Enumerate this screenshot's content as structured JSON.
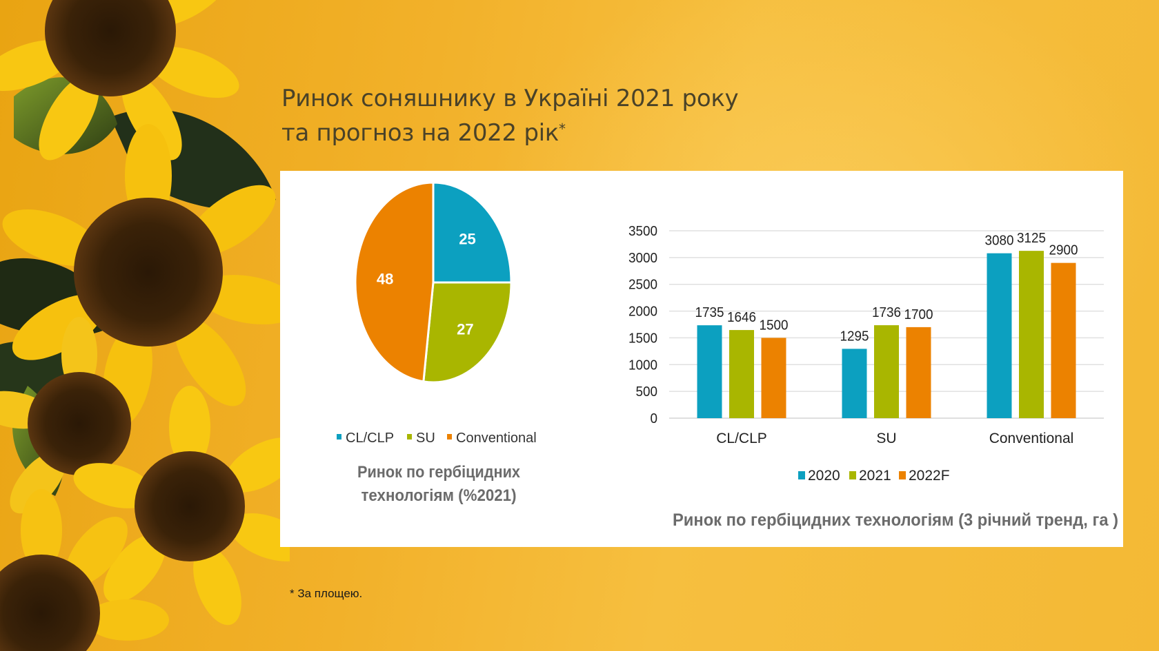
{
  "slide": {
    "title_line1": "Ринок соняшнику в Україні 2021 року",
    "title_line2": "та прогноз на 2022 рік",
    "title_mark": "*",
    "footnote": "* За площею."
  },
  "colors": {
    "blue": "#0ca0c0",
    "green": "#a9b600",
    "orange": "#ec8200",
    "text_dark": "#222222",
    "text_grey": "#6b6b6b",
    "grid": "#e0e0e0"
  },
  "chart_data": [
    {
      "type": "pie",
      "title": "Ринок по гербіцидних технологіям (%2021)",
      "title_lines": [
        "Ринок по гербіцидних",
        "технологіям  (%2021)"
      ],
      "categories": [
        "CL/CLP",
        "SU",
        "Conventional"
      ],
      "values": [
        25,
        27,
        48
      ],
      "data_labels": [
        "25",
        "27",
        "48"
      ],
      "legend": [
        "CL/CLP",
        "SU",
        "Conventional"
      ],
      "legend_position": "bottom"
    },
    {
      "type": "bar",
      "title": "Ринок по гербіцидних технологіям (3 річний тренд, га )",
      "categories": [
        "CL/CLP",
        "SU",
        "Conventional"
      ],
      "series": [
        {
          "name": "2020",
          "values": [
            1735,
            1295,
            3080
          ]
        },
        {
          "name": "2021",
          "values": [
            1646,
            1736,
            3125
          ]
        },
        {
          "name": "2022F",
          "values": [
            1500,
            1700,
            2900
          ]
        }
      ],
      "xlabel": "",
      "ylabel": "",
      "ylim": [
        0,
        3500
      ],
      "yticks": [
        0,
        500,
        1000,
        1500,
        2000,
        2500,
        3000,
        3500
      ],
      "ytick_labels": [
        "0",
        "500",
        "1000",
        "1500",
        "2000",
        "2500",
        "3000",
        "3500"
      ],
      "grid": true,
      "legend_position": "bottom"
    }
  ]
}
